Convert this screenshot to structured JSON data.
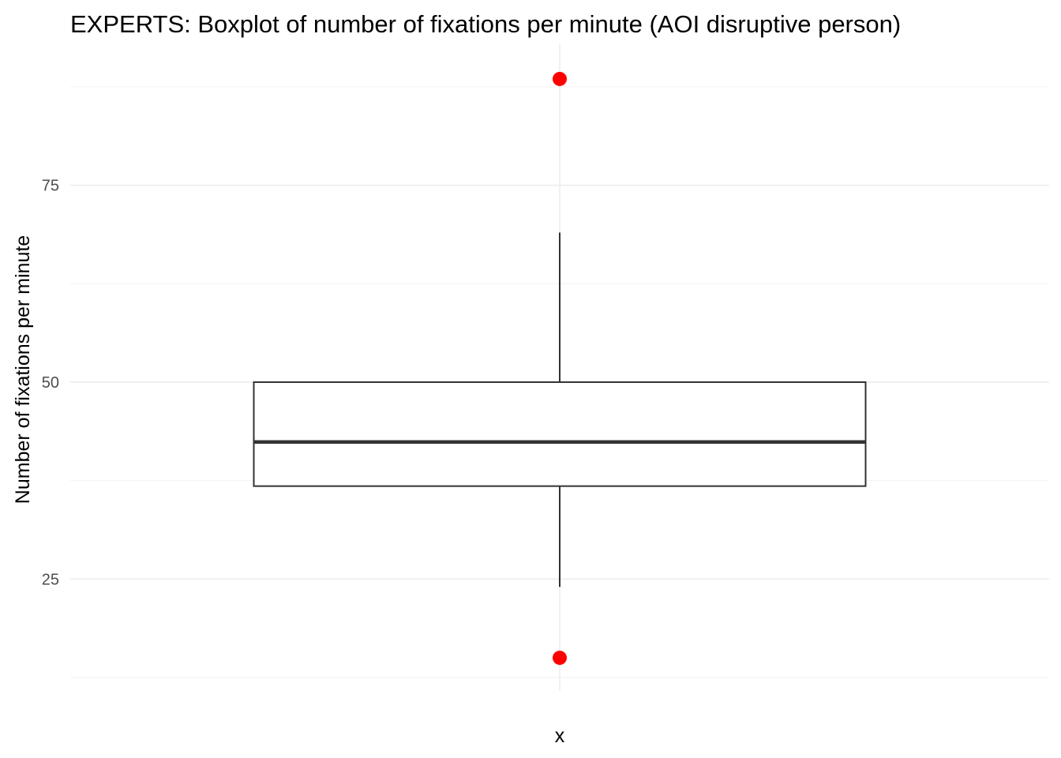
{
  "chart_data": {
    "type": "boxplot",
    "title": "EXPERTS: Boxplot of number of fixations per minute (AOI disruptive person)",
    "xlabel": "x",
    "ylabel": "Number of fixations per minute",
    "categories": [
      "x"
    ],
    "ylim": [
      10.8,
      90.0
    ],
    "yticks": [
      25,
      50,
      75
    ],
    "y_minor_ticks": [
      12.5,
      37.5,
      62.5,
      87.5
    ],
    "grid": true,
    "boxes": [
      {
        "category": "x",
        "whisker_low": 24,
        "q1": 36.8,
        "median": 42.4,
        "q3": 50,
        "whisker_high": 69,
        "outliers": [
          15,
          88.5
        ]
      }
    ],
    "colors": {
      "box_fill": "#ffffff",
      "box_stroke": "#333333",
      "outlier": "#ff0000"
    }
  }
}
